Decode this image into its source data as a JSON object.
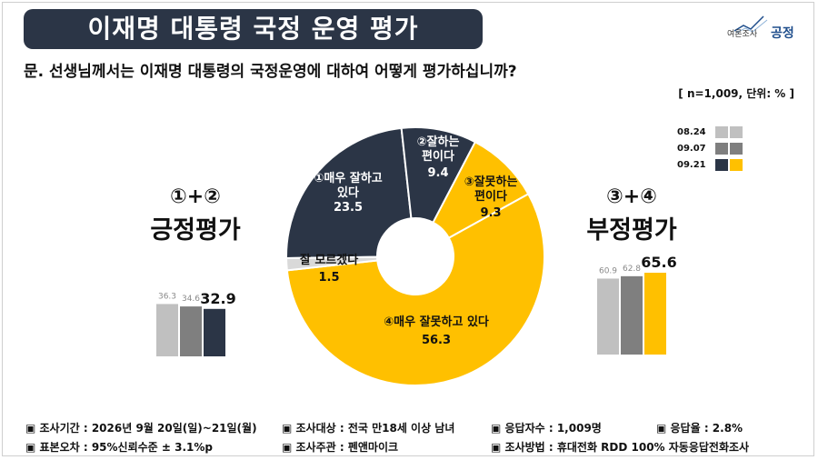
{
  "title": "이재명 대통령 국정 운영 평가",
  "logo": {
    "small": "여론조사",
    "brand": "공정"
  },
  "question": "문. 선생님께서는 이재명 대통령의 국정운영에 대하여 어떻게 평가하십니까?",
  "sample_note": "[ n=1,009, 단위: % ]",
  "legend": [
    {
      "label": "08.24",
      "colors": [
        "#c0c0c0",
        "#c0c0c0"
      ]
    },
    {
      "label": "09.07",
      "colors": [
        "#7f7f7f",
        "#7f7f7f"
      ]
    },
    {
      "label": "09.21",
      "colors": [
        "#2b3546",
        "#ffc000"
      ]
    }
  ],
  "positive": {
    "num": "①+②",
    "label": "긍정평가"
  },
  "negative": {
    "num": "③+④",
    "label": "부정평가"
  },
  "chart_data": [
    {
      "type": "pie",
      "donut": true,
      "slices": [
        {
          "label": "①매우 잘하고 있다",
          "value": 23.5,
          "value_label": "23.5",
          "color": "#2b3546"
        },
        {
          "label": "②잘하는 편이다",
          "value": 9.4,
          "value_label": "9.4",
          "color": "#2b3546"
        },
        {
          "label": "③잘못하는 편이다",
          "value": 9.3,
          "value_label": "9.3",
          "color": "#ffc000"
        },
        {
          "label": "④매우 잘못하고 있다",
          "value": 56.3,
          "value_label": "56.3",
          "color": "#ffc000"
        },
        {
          "label": "잘 모르겠다",
          "value": 1.5,
          "value_label": "1.5",
          "color": "#d9d9d9"
        }
      ]
    },
    {
      "type": "bar",
      "name": "positive",
      "categories": [
        "08.24",
        "09.07",
        "09.21"
      ],
      "values": [
        36.3,
        34.6,
        32.9
      ],
      "value_labels": [
        "36.3",
        "34.6",
        "32.9"
      ],
      "colors": [
        "#c0c0c0",
        "#7f7f7f",
        "#2b3546"
      ]
    },
    {
      "type": "bar",
      "name": "negative",
      "categories": [
        "08.24",
        "09.07",
        "09.21"
      ],
      "values": [
        60.9,
        62.8,
        65.6
      ],
      "value_labels": [
        "60.9",
        "62.8",
        "65.6"
      ],
      "colors": [
        "#c0c0c0",
        "#7f7f7f",
        "#ffc000"
      ]
    }
  ],
  "footer": {
    "items": [
      "▣ 조사기간 : 2026년 9월 20일(일)~21일(월)",
      "▣ 조사대상 : 전국 만18세 이상 남녀",
      "▣ 응답자수 : 1,009명",
      "▣ 응답율 : 2.8%",
      "▣ 표본오차 : 95%신뢰수준 ± 3.1%p",
      "▣ 조사주관 : 펜앤마이크",
      "▣ 조사방법 : 휴대전화 RDD 100% 자동응답전화조사"
    ]
  }
}
